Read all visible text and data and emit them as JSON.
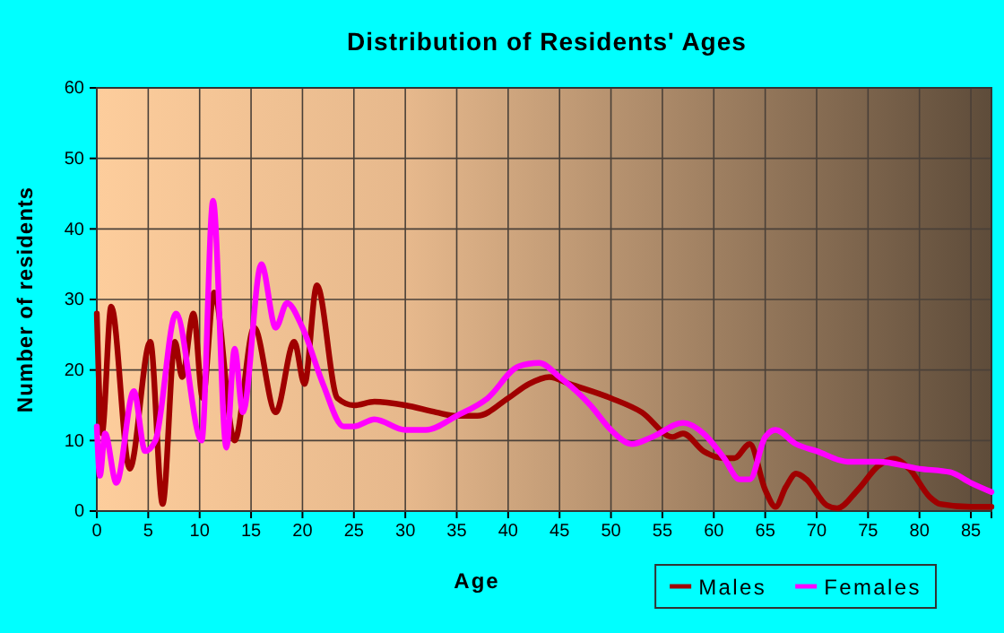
{
  "chart_data": {
    "type": "line",
    "title": "Distribution of Residents' Ages",
    "xlabel": "Age",
    "ylabel": "Number of residents",
    "xlim": [
      0,
      87
    ],
    "ylim": [
      0,
      60
    ],
    "xticks": [
      0,
      5,
      10,
      15,
      20,
      25,
      30,
      35,
      40,
      45,
      50,
      55,
      60,
      65,
      70,
      75,
      80,
      85
    ],
    "yticks": [
      0,
      10,
      20,
      30,
      40,
      50,
      60
    ],
    "grid": true,
    "legend": "bottom right",
    "line_style": "solid",
    "marker": "none",
    "series": [
      {
        "name": "Males",
        "color": "#a00000",
        "x": [
          0,
          0.5,
          1.4,
          3.2,
          5.2,
          6.4,
          7.6,
          8.3,
          9.4,
          10.3,
          11.4,
          13.4,
          15.3,
          17.4,
          19.2,
          20.2,
          21.4,
          23.4,
          25,
          27,
          30,
          33,
          35,
          37,
          40,
          42,
          44,
          46,
          50,
          53,
          56,
          57,
          59,
          61,
          62,
          63.5,
          65,
          66,
          67,
          68,
          69,
          71,
          72,
          74,
          76,
          77.5,
          79,
          81,
          82,
          85,
          87
        ],
        "values": [
          28,
          11,
          29,
          6,
          24,
          1,
          24,
          19,
          28,
          16,
          31,
          10,
          26,
          14,
          24,
          18,
          32,
          16,
          15,
          15.5,
          15,
          14,
          13.5,
          13.5,
          16,
          18,
          19,
          18,
          16,
          14,
          10.5,
          11,
          8.5,
          7.5,
          7.5,
          9.5,
          3,
          0.6,
          3.4,
          5.3,
          4.5,
          0.8,
          0.4,
          3,
          6.4,
          7.4,
          6,
          2,
          1,
          0.6,
          0.6
        ]
      },
      {
        "name": "Females",
        "color": "#ff00ff",
        "x": [
          0,
          0.3,
          0.8,
          1.9,
          3.6,
          4.7,
          5.7,
          7.7,
          10.2,
          11.3,
          12.6,
          13.4,
          14.2,
          16,
          17.4,
          18.5,
          20,
          22,
          24,
          25,
          27,
          30,
          32,
          35,
          38,
          41,
          43,
          45,
          48,
          50,
          52,
          54,
          57,
          59,
          61,
          62.5,
          63.5,
          65,
          66,
          68,
          70,
          73,
          76,
          80,
          83,
          85,
          87
        ],
        "values": [
          12,
          5,
          11,
          4,
          17,
          8.5,
          10,
          28,
          10,
          44,
          9,
          23,
          14,
          35,
          26,
          29.5,
          26,
          18,
          12,
          12,
          13,
          11.5,
          11.5,
          13.5,
          16,
          20.5,
          21,
          19,
          15,
          11.5,
          9.5,
          10.5,
          12.5,
          11,
          7.5,
          4.5,
          4.5,
          10.5,
          11.5,
          9.5,
          8.5,
          7,
          7,
          6,
          5.5,
          4,
          2.7
        ]
      }
    ]
  }
}
